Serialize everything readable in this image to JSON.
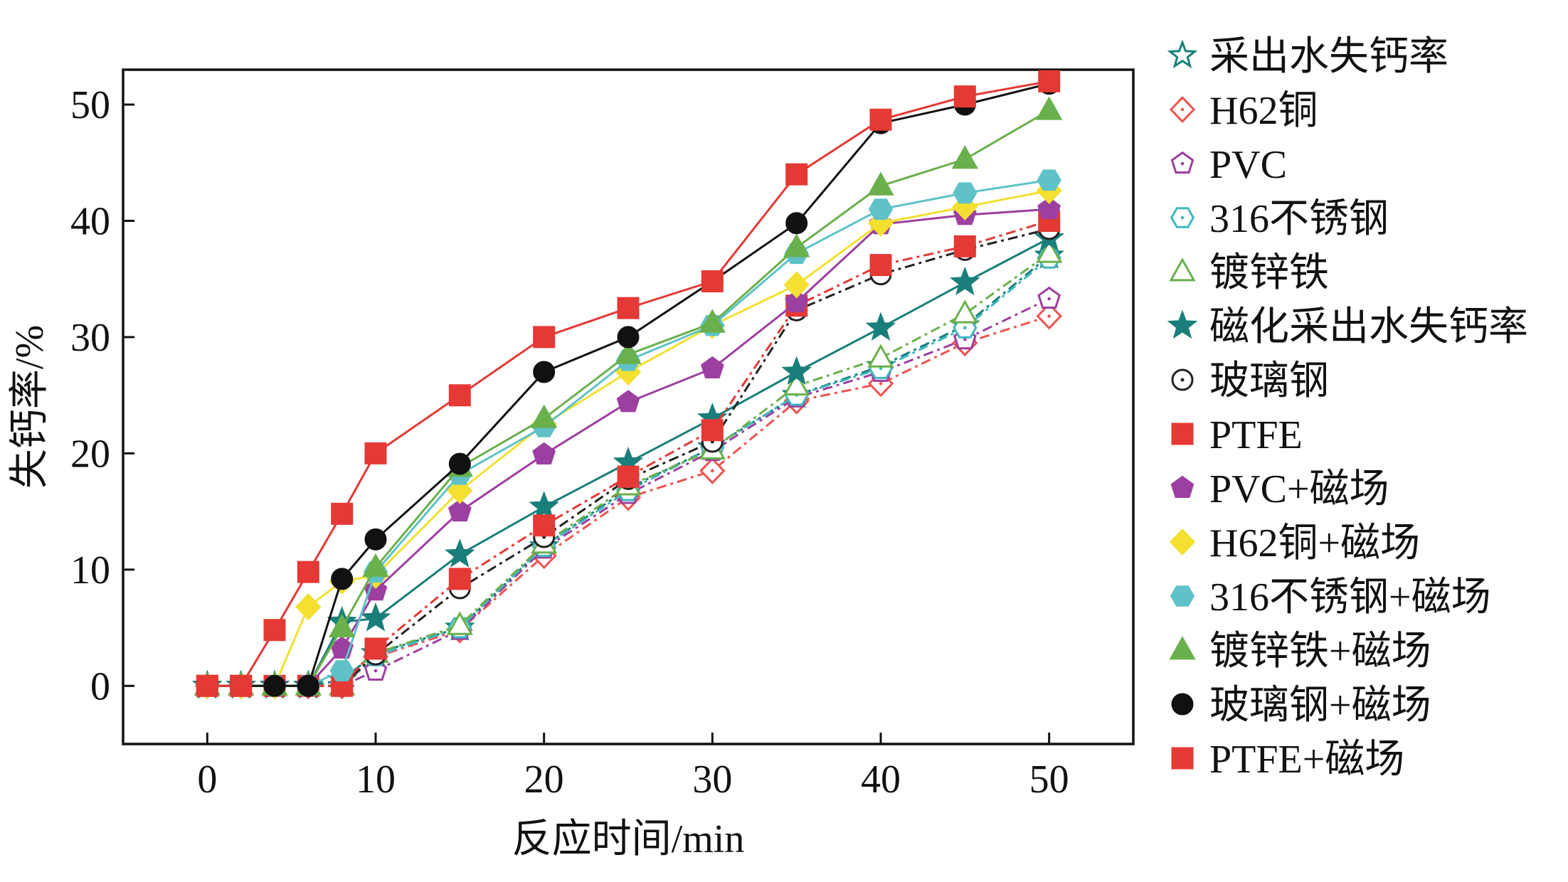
{
  "chart_data": {
    "type": "line",
    "xlabel": "反应时间/min",
    "ylabel": "失钙率/%",
    "xlim": [
      -5,
      55
    ],
    "ylim": [
      -5,
      53
    ],
    "xticks": [
      0,
      10,
      20,
      30,
      40,
      50
    ],
    "yticks": [
      0,
      10,
      20,
      30,
      40,
      50
    ],
    "grid": false,
    "legend_position": "right-outside",
    "x": [
      0,
      2,
      4,
      6,
      8,
      10,
      15,
      20,
      25,
      30,
      35,
      40,
      45,
      50
    ],
    "series": [
      {
        "name": "采出水失钙率",
        "color": "#1a7f7a",
        "marker": "star",
        "filled": false,
        "linestyle": "dashdot",
        "values": [
          0,
          0,
          0,
          0,
          0.5,
          2.8,
          5,
          12,
          17,
          20.5,
          25,
          27.5,
          31,
          37
        ]
      },
      {
        "name": "H62铜",
        "color": "#ef5350",
        "marker": "diamond",
        "filled": false,
        "linestyle": "dashdot",
        "values": [
          0,
          0,
          0,
          0,
          0,
          2.5,
          4.8,
          11.2,
          16.2,
          18.5,
          24.5,
          26,
          29.5,
          31.8
        ]
      },
      {
        "name": "PVC",
        "color": "#9c3fa0",
        "marker": "pentagon",
        "filled": false,
        "linestyle": "dashdot",
        "values": [
          0,
          0,
          0,
          0,
          0,
          1.3,
          4.8,
          11.8,
          16.5,
          20.2,
          24.8,
          27,
          29.8,
          33.3
        ]
      },
      {
        "name": "316不锈钢",
        "color": "#3fb7c0",
        "marker": "hexagon",
        "filled": false,
        "linestyle": "dashdot",
        "values": [
          0,
          0,
          0,
          0,
          0,
          2.6,
          5,
          12,
          16.8,
          20.5,
          25,
          27.3,
          30.8,
          36.8
        ]
      },
      {
        "name": "镀锌铁",
        "color": "#6ab04c",
        "marker": "triangle",
        "filled": false,
        "linestyle": "dashdot",
        "values": [
          0,
          0,
          0,
          0,
          0,
          2.8,
          5.2,
          12.2,
          17.2,
          20.3,
          25.8,
          28.2,
          32,
          37.2
        ]
      },
      {
        "name": "磁化采出水失钙率",
        "color": "#1a7f7a",
        "marker": "star",
        "filled": true,
        "linestyle": "solid",
        "values": [
          0,
          0,
          0,
          0,
          5.5,
          5.8,
          11.3,
          15.4,
          19.2,
          23,
          27,
          30.8,
          34.7,
          38.5
        ]
      },
      {
        "name": "玻璃钢",
        "color": "#222222",
        "marker": "circle",
        "filled": false,
        "linestyle": "dashdot",
        "values": [
          0,
          0,
          0,
          0,
          0,
          2.7,
          8.4,
          12.8,
          17.8,
          21,
          32.3,
          35.4,
          37.5,
          39.3
        ]
      },
      {
        "name": "PTFE",
        "color": "#e53935",
        "marker": "square",
        "filled": true,
        "linestyle": "dashdot",
        "values": [
          0,
          0,
          0,
          0,
          0,
          3.2,
          9.2,
          13.8,
          18,
          22,
          32.7,
          36.2,
          37.8,
          40
        ]
      },
      {
        "name": "PVC+磁场",
        "color": "#9c3fa0",
        "marker": "pentagon",
        "filled": true,
        "linestyle": "solid",
        "values": [
          0,
          0,
          0,
          0,
          3.2,
          8.2,
          15,
          19.9,
          24.4,
          27.3,
          33,
          39.7,
          40.5,
          41
        ]
      },
      {
        "name": "H62铜+磁场",
        "color": "#f3e030",
        "marker": "diamond",
        "filled": true,
        "linestyle": "solid",
        "values": [
          0,
          0,
          0,
          6.8,
          9,
          9.5,
          16.8,
          22.5,
          27,
          31,
          34.5,
          39.8,
          41.2,
          42.6
        ]
      },
      {
        "name": "316不锈钢+磁场",
        "color": "#5ec2c8",
        "marker": "hexagon",
        "filled": true,
        "linestyle": "solid",
        "values": [
          0,
          0,
          0,
          0,
          1.3,
          9.8,
          18.2,
          22.3,
          28,
          31,
          37.2,
          41,
          42.4,
          43.5
        ]
      },
      {
        "name": "镀锌铁+磁场",
        "color": "#6ab04c",
        "marker": "triangle",
        "filled": true,
        "linestyle": "solid",
        "values": [
          0,
          0,
          0,
          0,
          5,
          10.2,
          18.8,
          23,
          28.5,
          31.2,
          37.7,
          43,
          45.3,
          49.5
        ]
      },
      {
        "name": "玻璃钢+磁场",
        "color": "#111111",
        "marker": "circle",
        "filled": true,
        "linestyle": "solid",
        "values": [
          0,
          0,
          0,
          0,
          9.2,
          12.6,
          19.1,
          27,
          30,
          34.8,
          39.8,
          48.4,
          50,
          51.8
        ]
      },
      {
        "name": "PTFE+磁场",
        "color": "#e53935",
        "marker": "square",
        "filled": true,
        "linestyle": "solid",
        "values": [
          0,
          0,
          4.8,
          9.8,
          14.8,
          20,
          25,
          30,
          32.5,
          34.8,
          44,
          48.7,
          50.7,
          52
        ]
      }
    ]
  }
}
